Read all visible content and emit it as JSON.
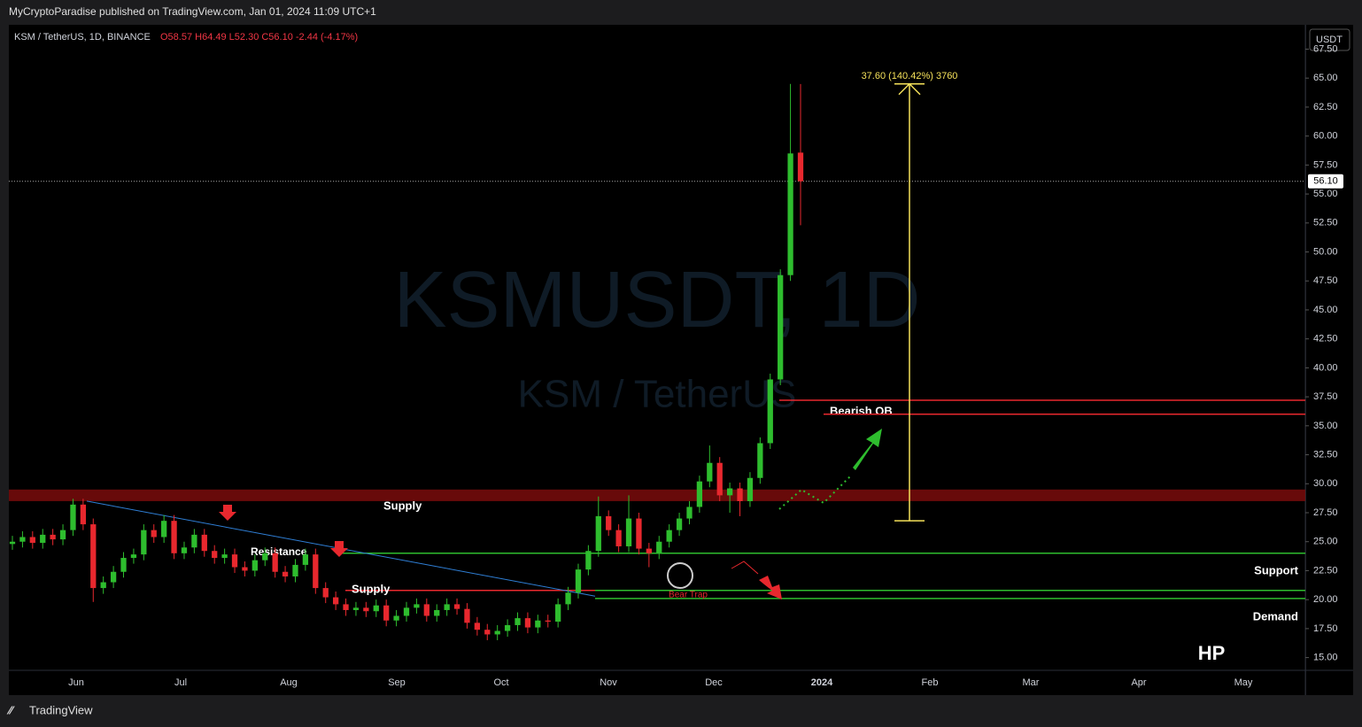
{
  "header": {
    "publisher": "MyCryptoParadise published on TradingView.com, Jan 01, 2024 11:09 UTC+1",
    "symbol": "KSM / TetherUS, 1D, BINANCE",
    "ohlc_legend": "O58.57 H64.49 L52.30 C56.10 -2.44 (-4.17%)"
  },
  "footer": {
    "brand": "TradingView"
  },
  "chart_data": {
    "type": "candlestick",
    "watermark": "KSMUSDT, 1D",
    "watermark_sub": "KSM / TetherUS",
    "currency": "USDT",
    "last_price": {
      "value": 56.1,
      "label": "56.10"
    },
    "categories": [
      "Jun",
      "Jul",
      "Aug",
      "Sep",
      "Oct",
      "Nov",
      "Dec",
      "2024",
      "Feb",
      "Mar",
      "Apr",
      "May"
    ],
    "ylim": [
      13.9,
      69.6
    ],
    "yticks": [
      {
        "value": 15,
        "label": "15.00"
      },
      {
        "value": 17.5,
        "label": "17.50"
      },
      {
        "value": 20,
        "label": "20.00"
      },
      {
        "value": 22.5,
        "label": "22.50"
      },
      {
        "value": 25,
        "label": "25.00"
      },
      {
        "value": 27.5,
        "label": "27.50"
      },
      {
        "value": 30,
        "label": "30.00"
      },
      {
        "value": 32.5,
        "label": "32.50"
      },
      {
        "value": 35,
        "label": "35.00"
      },
      {
        "value": 37.5,
        "label": "37.50"
      },
      {
        "value": 40,
        "label": "40.00"
      },
      {
        "value": 42.5,
        "label": "42.50"
      },
      {
        "value": 45,
        "label": "45.00"
      },
      {
        "value": 47.5,
        "label": "47.50"
      },
      {
        "value": 50,
        "label": "50.00"
      },
      {
        "value": 52.5,
        "label": "52.50"
      },
      {
        "value": 55,
        "label": "55.00"
      },
      {
        "value": 57.5,
        "label": "57.50"
      },
      {
        "value": 60,
        "label": "60.00"
      },
      {
        "value": 62.5,
        "label": "62.50"
      },
      {
        "value": 65,
        "label": "65.00"
      },
      {
        "value": 67.5,
        "label": "67.50"
      }
    ],
    "up_color": "#2ebd2e",
    "down_color": "#e8282e",
    "ohlc": [
      [
        24.8,
        25.5,
        24.3,
        25.0
      ],
      [
        25.0,
        25.9,
        24.5,
        25.4
      ],
      [
        25.4,
        25.9,
        24.4,
        24.9
      ],
      [
        24.9,
        26.1,
        24.4,
        25.6
      ],
      [
        25.6,
        26.1,
        24.7,
        25.2
      ],
      [
        25.2,
        26.5,
        24.7,
        26.0
      ],
      [
        26.0,
        28.7,
        25.5,
        28.2
      ],
      [
        28.2,
        28.7,
        26.0,
        26.5
      ],
      [
        26.5,
        27.0,
        19.8,
        21.0
      ],
      [
        21.0,
        22.0,
        20.5,
        21.5
      ],
      [
        21.5,
        22.9,
        21.0,
        22.4
      ],
      [
        22.4,
        24.1,
        21.9,
        23.6
      ],
      [
        23.6,
        24.4,
        23.1,
        23.9
      ],
      [
        23.9,
        26.5,
        23.4,
        26.0
      ],
      [
        26.0,
        26.5,
        24.9,
        25.4
      ],
      [
        25.4,
        27.3,
        24.9,
        26.8
      ],
      [
        26.8,
        27.3,
        23.5,
        24.0
      ],
      [
        24.0,
        25.0,
        23.5,
        24.5
      ],
      [
        24.5,
        26.1,
        24.0,
        25.6
      ],
      [
        25.6,
        26.1,
        23.7,
        24.2
      ],
      [
        24.2,
        24.7,
        23.1,
        23.6
      ],
      [
        23.6,
        24.4,
        23.1,
        23.9
      ],
      [
        23.9,
        24.4,
        22.3,
        22.8
      ],
      [
        22.8,
        23.3,
        22.0,
        22.5
      ],
      [
        22.5,
        23.9,
        22.0,
        23.4
      ],
      [
        23.4,
        24.5,
        22.9,
        24.0
      ],
      [
        24.0,
        24.5,
        21.9,
        22.4
      ],
      [
        22.4,
        22.9,
        21.5,
        22.0
      ],
      [
        22.0,
        23.5,
        21.5,
        23.0
      ],
      [
        23.0,
        24.4,
        22.5,
        23.9
      ],
      [
        23.9,
        24.4,
        20.5,
        21.0
      ],
      [
        21.0,
        21.5,
        19.7,
        20.2
      ],
      [
        20.2,
        20.7,
        19.1,
        19.6
      ],
      [
        19.6,
        20.1,
        18.6,
        19.1
      ],
      [
        19.1,
        19.8,
        18.6,
        19.3
      ],
      [
        19.3,
        19.8,
        18.5,
        19.0
      ],
      [
        19.0,
        20.0,
        18.5,
        19.5
      ],
      [
        19.5,
        20.0,
        17.7,
        18.2
      ],
      [
        18.2,
        19.1,
        17.7,
        18.6
      ],
      [
        18.6,
        19.8,
        18.1,
        19.3
      ],
      [
        19.3,
        20.1,
        18.8,
        19.6
      ],
      [
        19.6,
        20.1,
        18.1,
        18.6
      ],
      [
        18.6,
        19.6,
        18.1,
        19.1
      ],
      [
        19.1,
        20.1,
        18.6,
        19.6
      ],
      [
        19.6,
        20.1,
        18.7,
        19.2
      ],
      [
        19.2,
        19.7,
        17.5,
        18.0
      ],
      [
        18.0,
        18.5,
        16.9,
        17.4
      ],
      [
        17.4,
        17.9,
        16.5,
        17.0
      ],
      [
        17.0,
        17.8,
        16.5,
        17.3
      ],
      [
        17.3,
        18.3,
        16.8,
        17.8
      ],
      [
        17.8,
        18.9,
        17.3,
        18.4
      ],
      [
        18.4,
        18.9,
        17.1,
        17.6
      ],
      [
        17.6,
        18.7,
        17.1,
        18.2
      ],
      [
        18.2,
        18.7,
        17.6,
        18.1
      ],
      [
        18.1,
        20.1,
        17.6,
        19.6
      ],
      [
        19.6,
        21.1,
        19.1,
        20.6
      ],
      [
        20.6,
        23.1,
        20.1,
        22.6
      ],
      [
        22.6,
        24.7,
        22.1,
        24.2
      ],
      [
        24.2,
        28.9,
        23.7,
        27.2
      ],
      [
        27.2,
        27.7,
        25.5,
        26.0
      ],
      [
        26.0,
        26.5,
        24.1,
        24.6
      ],
      [
        24.6,
        29.0,
        24.1,
        27.0
      ],
      [
        27.0,
        27.5,
        23.9,
        24.4
      ],
      [
        24.4,
        24.9,
        22.8,
        24.0
      ],
      [
        24.0,
        25.5,
        23.5,
        25.0
      ],
      [
        25.0,
        26.5,
        24.5,
        26.0
      ],
      [
        26.0,
        27.5,
        25.5,
        27.0
      ],
      [
        27.0,
        28.5,
        26.5,
        28.0
      ],
      [
        28.0,
        30.7,
        27.5,
        30.2
      ],
      [
        30.2,
        33.3,
        29.7,
        31.8
      ],
      [
        31.8,
        32.3,
        28.5,
        29.0
      ],
      [
        29.0,
        30.1,
        27.5,
        29.6
      ],
      [
        29.6,
        30.1,
        27.2,
        28.5
      ],
      [
        28.5,
        31.0,
        28.0,
        30.5
      ],
      [
        30.5,
        34.0,
        30.0,
        33.5
      ],
      [
        33.5,
        39.5,
        33.0,
        39.0
      ],
      [
        39.0,
        48.5,
        38.5,
        48.0
      ],
      [
        48.0,
        64.5,
        47.5,
        58.5
      ],
      [
        58.57,
        64.49,
        52.3,
        56.1
      ]
    ],
    "supply_zone": {
      "label": "Supply",
      "range": [
        28.5,
        29.5
      ]
    },
    "levels": [
      {
        "label": "Bearish OB",
        "value": 37.2,
        "color": "#e8282e"
      },
      {
        "value": 36.0,
        "color": "#e8282e"
      },
      {
        "label": "Support",
        "value": 24.0,
        "color": "#2ebd2e"
      },
      {
        "label": "Supply",
        "value": 20.8,
        "color": "#e8282e"
      },
      {
        "label": "Demand",
        "value": 20.1,
        "color": "#2ebd2e"
      }
    ],
    "trendline": {
      "label": "Resistance",
      "from": 28.5,
      "to": 20.3
    },
    "bear_trap": "Bear Trap",
    "measure": {
      "label": "37.60 (140.42%) 3760",
      "from": 26.8,
      "to": 64.5
    },
    "signature": "HP"
  }
}
